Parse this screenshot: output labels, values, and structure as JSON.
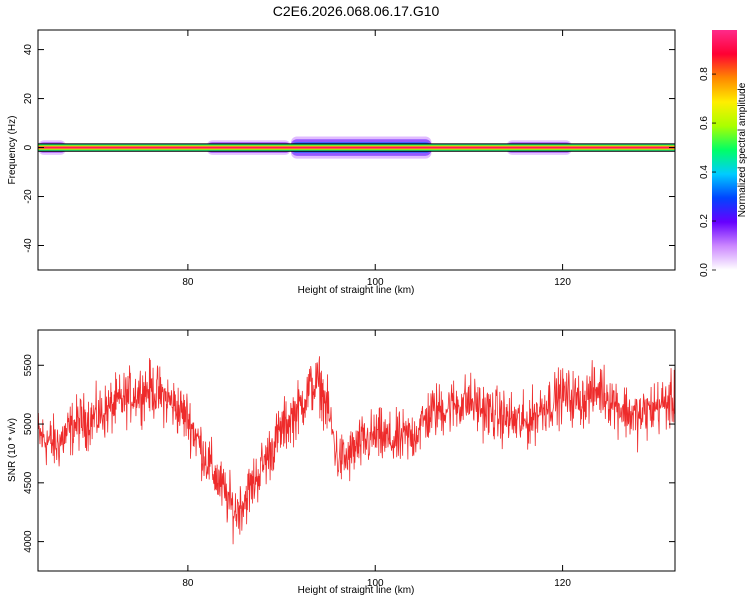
{
  "title": "C2E6.2026.068.06.17.G10",
  "colors": {
    "snr_line": "#ee2b2b",
    "axis": "#000000",
    "background": "#ffffff"
  },
  "colorbar": {
    "label": "Normalized spectral amplitude",
    "ticks": [
      "0.0",
      "0.2",
      "0.4",
      "0.6",
      "0.8"
    ],
    "tick_values": [
      0.0,
      0.2,
      0.4,
      0.6,
      0.8
    ],
    "range": [
      0,
      0.98
    ],
    "colormap": [
      "#ffffff",
      "#cc88ff",
      "#6600ff",
      "#0044ff",
      "#00ccff",
      "#00ff66",
      "#aaff00",
      "#ffee00",
      "#ff8800",
      "#ff0033",
      "#ff2a8a"
    ]
  },
  "chart_data": [
    {
      "type": "heatmap",
      "xlabel": "Height of straight line (km)",
      "ylabel": "Frequency (Hz)",
      "xlim": [
        64,
        132
      ],
      "ylim": [
        -50,
        48
      ],
      "xticks": [
        "80",
        "100",
        "120"
      ],
      "xtick_values": [
        80,
        100,
        120
      ],
      "yticks": [
        "40",
        "20",
        "0",
        "-20",
        "-40"
      ],
      "ytick_values": [
        40,
        20,
        0,
        -20,
        -40
      ],
      "band": {
        "center_hz": 0,
        "halfwidth_hz": 1.5,
        "core_amplitude": 0.95,
        "spread_regions": [
          {
            "from_km": 64,
            "to_km": 67,
            "spread_hz": 3,
            "amplitude": 0.25
          },
          {
            "from_km": 82,
            "to_km": 91,
            "spread_hz": 3,
            "amplitude": 0.3
          },
          {
            "from_km": 91,
            "to_km": 106,
            "spread_hz": 4.5,
            "amplitude": 0.45
          },
          {
            "from_km": 114,
            "to_km": 121,
            "spread_hz": 3,
            "amplitude": 0.25
          }
        ]
      }
    },
    {
      "type": "line",
      "xlabel": "Height of straight line (km)",
      "ylabel": "SNR (10 * v/v)",
      "xlim": [
        64,
        132
      ],
      "ylim": [
        3750,
        5800
      ],
      "xticks": [
        "80",
        "100",
        "120"
      ],
      "xtick_values": [
        80,
        100,
        120
      ],
      "yticks": [
        "5500",
        "5000",
        "4500",
        "4000"
      ],
      "ytick_values": [
        5500,
        5000,
        4500,
        4000
      ],
      "noise_amplitude": 230,
      "series": [
        {
          "x": [
            64,
            66,
            68,
            70,
            72,
            74,
            76,
            78,
            80,
            82,
            84,
            85,
            86,
            88,
            90,
            92,
            93,
            94,
            95,
            96,
            97,
            98,
            100,
            102,
            104,
            106,
            108,
            110,
            112,
            114,
            116,
            118,
            120,
            122,
            124,
            126,
            128,
            130,
            132
          ],
          "y": [
            4900,
            4820,
            5000,
            5050,
            5150,
            5250,
            5300,
            5200,
            5050,
            4700,
            4400,
            4250,
            4350,
            4650,
            4950,
            5150,
            5300,
            5350,
            5100,
            4700,
            4700,
            4800,
            4900,
            4850,
            4900,
            5100,
            5150,
            5200,
            5100,
            5050,
            5000,
            5150,
            5250,
            5200,
            5300,
            5150,
            5050,
            5150,
            5200
          ]
        }
      ]
    }
  ]
}
